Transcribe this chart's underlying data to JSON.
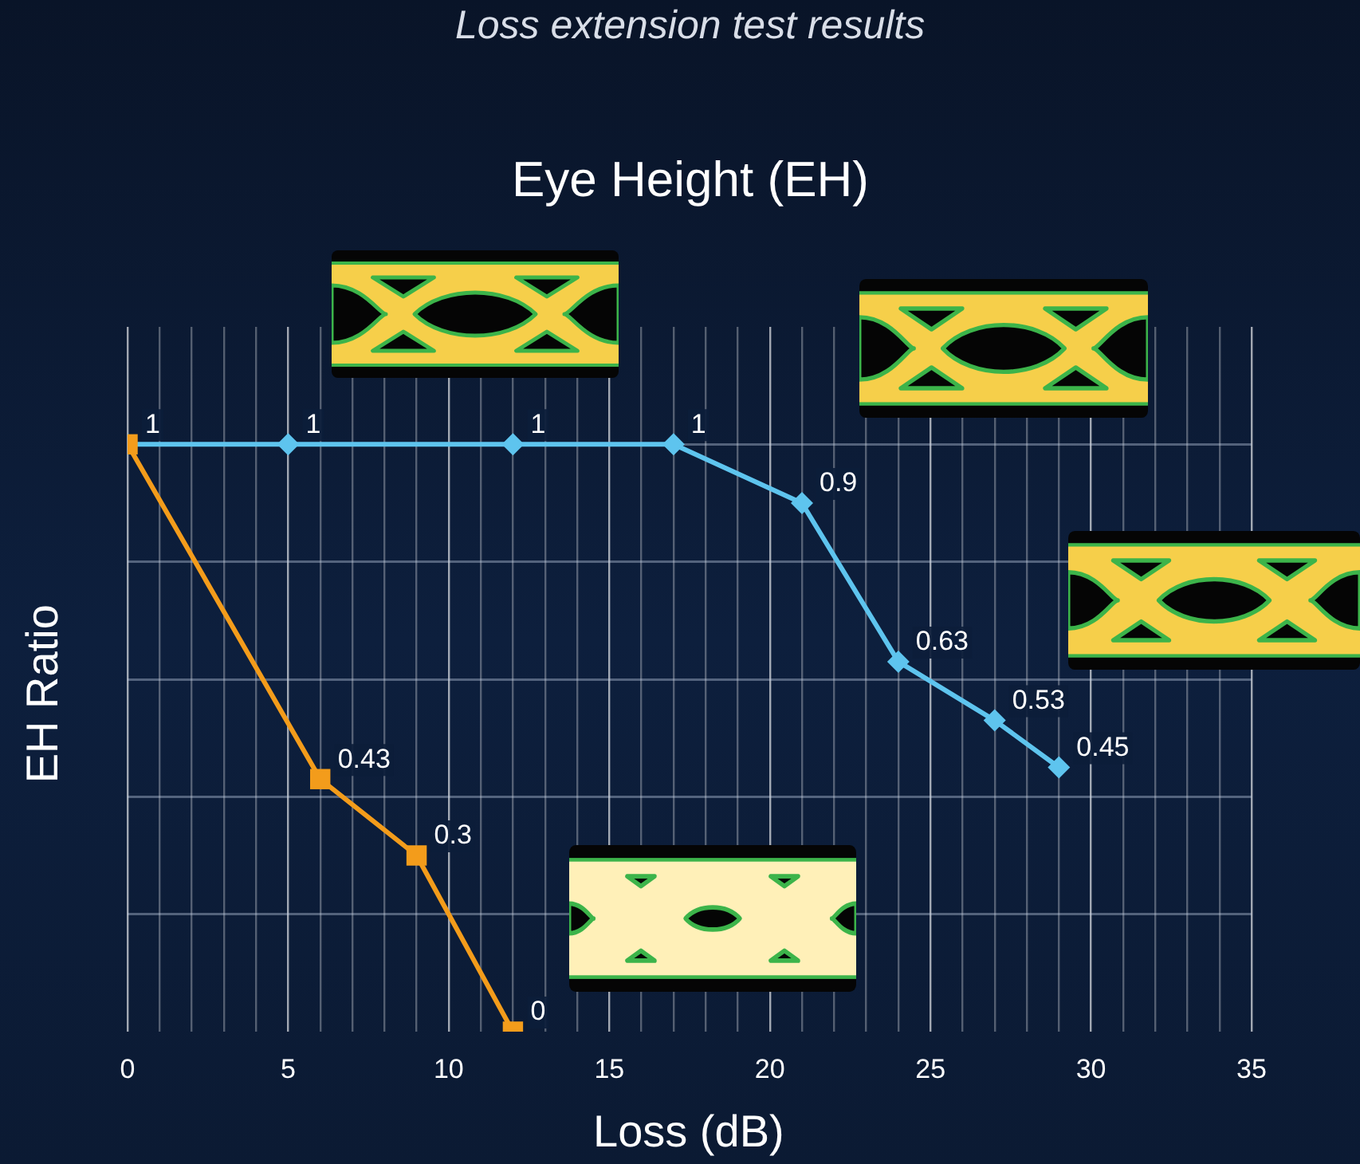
{
  "chart_data": {
    "type": "line",
    "title": "Loss extension test results",
    "subtitle": "Eye Height (EH)",
    "xlabel": "Loss (dB)",
    "ylabel": "EH Ratio",
    "series": [
      {
        "color": "#f39c1b",
        "marker": "square",
        "x": [
          0,
          6,
          9,
          12
        ],
        "values": [
          1,
          0.43,
          0.3,
          0
        ],
        "value_labels": [
          "1",
          "0.43",
          "0.3",
          "0"
        ]
      },
      {
        "color": "#5ec4ee",
        "marker": "diamond",
        "x": [
          0,
          5,
          12,
          17,
          21,
          24,
          27,
          29
        ],
        "values": [
          1,
          1,
          1,
          1,
          0.9,
          0.63,
          0.53,
          0.45
        ],
        "value_labels": [
          null,
          "1",
          "1",
          "1",
          "0.9",
          "0.63",
          "0.53",
          "0.45"
        ]
      }
    ],
    "xlim": [
      0,
      35
    ],
    "xticks": [
      0,
      {
        "value": 1,
        "label": null
      },
      {
        "value": 2,
        "label": null
      },
      {
        "value": 3,
        "label": null
      },
      {
        "value": 4,
        "label": null
      },
      5,
      {
        "value": 6,
        "label": null
      },
      {
        "value": 7,
        "label": null
      },
      {
        "value": 8,
        "label": null
      },
      {
        "value": 9,
        "label": null
      },
      10,
      {
        "value": 11,
        "label": null
      },
      {
        "value": 12,
        "label": null
      },
      {
        "value": 13,
        "label": null
      },
      {
        "value": 14,
        "label": null
      },
      15,
      {
        "value": 16,
        "label": null
      },
      {
        "value": 17,
        "label": null
      },
      {
        "value": 18,
        "label": null
      },
      {
        "value": 19,
        "label": null
      },
      20,
      {
        "value": 21,
        "label": null
      },
      {
        "value": 22,
        "label": null
      },
      {
        "value": 23,
        "label": null
      },
      {
        "value": 24,
        "label": null
      },
      25,
      {
        "value": 26,
        "label": null
      },
      {
        "value": 27,
        "label": null
      },
      {
        "value": 28,
        "label": null
      },
      {
        "value": 29,
        "label": null
      },
      30,
      {
        "value": 31,
        "label": null
      },
      {
        "value": 32,
        "label": null
      },
      {
        "value": 33,
        "label": null
      },
      {
        "value": 34,
        "label": null
      },
      35
    ],
    "ylim": [
      0,
      1.2
    ],
    "yticks": [
      {
        "value": 0.2,
        "label": null
      },
      {
        "value": 0.4,
        "label": null
      },
      {
        "value": 0.6,
        "label": null
      },
      {
        "value": 0.8,
        "label": null
      },
      {
        "value": 1,
        "label": null
      }
    ],
    "grid": true,
    "tick_labels": "x"
  }
}
